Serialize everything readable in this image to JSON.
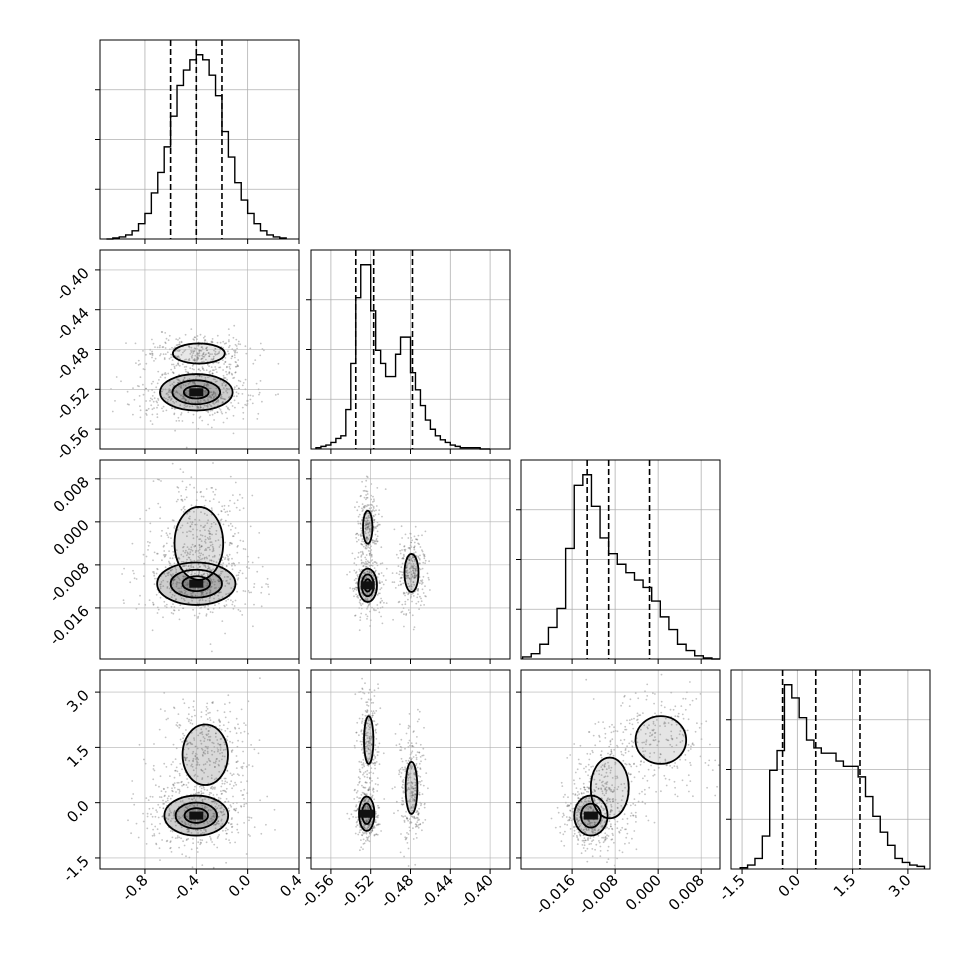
{
  "chart_data": {
    "type": "corner",
    "title": "",
    "grid": true,
    "parameters": [
      {
        "range": [
          -1.15,
          0.4
        ],
        "ticks": [
          "-0.8",
          "-0.4",
          "0.0",
          "0.4"
        ],
        "tick_values": [
          -0.8,
          -0.4,
          0.0,
          0.4
        ],
        "quantiles": [
          -0.6,
          -0.4,
          -0.2
        ],
        "histogram": {
          "bin_edges": [
            -1.1,
            -1.05,
            -1.0,
            -0.95,
            -0.9,
            -0.85,
            -0.8,
            -0.75,
            -0.7,
            -0.65,
            -0.6,
            -0.55,
            -0.5,
            -0.45,
            -0.4,
            -0.35,
            -0.3,
            -0.25,
            -0.2,
            -0.15,
            -0.1,
            -0.05,
            0.0,
            0.05,
            0.1,
            0.15,
            0.2,
            0.25,
            0.3
          ],
          "counts": [
            0,
            1,
            2,
            4,
            8,
            15,
            25,
            45,
            65,
            90,
            120,
            150,
            165,
            175,
            180,
            175,
            160,
            140,
            105,
            80,
            55,
            38,
            25,
            15,
            8,
            4,
            2,
            1
          ]
        }
      },
      {
        "range": [
          -0.58,
          -0.38
        ],
        "ticks": [
          "-0.56",
          "-0.52",
          "-0.48",
          "-0.44",
          "-0.40"
        ],
        "tick_values": [
          -0.56,
          -0.52,
          -0.48,
          -0.44,
          -0.4
        ],
        "quantiles": [
          -0.535,
          -0.517,
          -0.478
        ],
        "histogram": {
          "bin_edges": [
            -0.575,
            -0.57,
            -0.565,
            -0.56,
            -0.555,
            -0.55,
            -0.545,
            -0.54,
            -0.535,
            -0.53,
            -0.525,
            -0.52,
            -0.515,
            -0.51,
            -0.505,
            -0.5,
            -0.495,
            -0.49,
            -0.485,
            -0.48,
            -0.475,
            -0.47,
            -0.465,
            -0.46,
            -0.455,
            -0.45,
            -0.445,
            -0.44,
            -0.435,
            -0.43,
            -0.425,
            -0.42,
            -0.415,
            -0.41,
            -0.405,
            -0.4
          ],
          "counts": [
            1,
            2,
            3,
            5,
            8,
            10,
            30,
            65,
            115,
            140,
            140,
            105,
            75,
            65,
            55,
            55,
            72,
            85,
            85,
            58,
            45,
            33,
            22,
            15,
            10,
            7,
            5,
            3,
            2,
            1,
            1,
            1,
            1,
            0,
            0
          ]
        }
      },
      {
        "range": [
          -0.0255,
          0.0115
        ],
        "ticks": [
          "-0.016",
          "-0.008",
          "0.000",
          "0.008"
        ],
        "tick_values": [
          -0.016,
          -0.008,
          0.0,
          0.008
        ],
        "quantiles": [
          -0.0132,
          -0.0092,
          -0.0016
        ],
        "histogram": {
          "bin_edges": [
            -0.0252,
            -0.0236,
            -0.022,
            -0.0204,
            -0.0188,
            -0.0172,
            -0.0156,
            -0.014,
            -0.0124,
            -0.0108,
            -0.0092,
            -0.0076,
            -0.006,
            -0.0044,
            -0.0028,
            -0.0012,
            0.0004,
            0.002,
            0.0036,
            0.0052,
            0.0068,
            0.0084,
            0.01,
            0.0116
          ],
          "counts": [
            2,
            5,
            14,
            30,
            48,
            105,
            165,
            175,
            145,
            115,
            100,
            90,
            82,
            75,
            68,
            55,
            40,
            28,
            14,
            8,
            3,
            1,
            0
          ]
        }
      },
      {
        "range": [
          -1.8,
          3.6
        ],
        "ticks": [
          "-1.5",
          "0.0",
          "1.5",
          "3.0"
        ],
        "tick_values": [
          -1.5,
          0.0,
          1.5,
          3.0
        ],
        "quantiles": [
          -0.4,
          0.5,
          1.7
        ],
        "histogram": {
          "bin_edges": [
            -1.55,
            -1.35,
            -1.15,
            -0.95,
            -0.75,
            -0.55,
            -0.35,
            -0.15,
            0.05,
            0.25,
            0.45,
            0.65,
            0.85,
            1.05,
            1.25,
            1.45,
            1.65,
            1.85,
            2.05,
            2.25,
            2.45,
            2.65,
            2.85,
            3.05,
            3.25,
            3.45
          ],
          "counts": [
            1,
            3,
            8,
            25,
            75,
            90,
            140,
            130,
            115,
            98,
            92,
            88,
            88,
            82,
            78,
            78,
            70,
            55,
            40,
            28,
            18,
            8,
            5,
            3,
            2
          ]
        }
      }
    ],
    "pairs": [
      {
        "row": 1,
        "col": 0,
        "components": [
          {
            "mx": -0.4,
            "my": -0.523,
            "sx": 0.17,
            "sy": 0.011,
            "w": 0.65,
            "levels": [
              0.25,
              0.55,
              0.85
            ],
            "dark": true
          },
          {
            "mx": -0.38,
            "my": -0.484,
            "sx": 0.16,
            "sy": 0.008,
            "w": 0.35,
            "levels": [
              0.45
            ],
            "dark": false
          }
        ]
      },
      {
        "row": 2,
        "col": 0,
        "components": [
          {
            "mx": -0.4,
            "my": -0.0115,
            "sx": 0.17,
            "sy": 0.0022,
            "w": 0.5,
            "levels": [
              0.2,
              0.5,
              0.82
            ],
            "dark": true
          },
          {
            "mx": -0.38,
            "my": -0.004,
            "sx": 0.14,
            "sy": 0.005,
            "w": 0.5,
            "levels": [
              0.4
            ],
            "dark": false
          }
        ]
      },
      {
        "row": 2,
        "col": 1,
        "components": [
          {
            "mx": -0.523,
            "my": -0.0118,
            "sx": 0.006,
            "sy": 0.002,
            "w": 0.35,
            "levels": [
              0.3,
              0.6,
              0.85
            ],
            "dark": true
          },
          {
            "mx": -0.523,
            "my": -0.001,
            "sx": 0.004,
            "sy": 0.0026,
            "w": 0.3,
            "levels": [
              0.5
            ],
            "dark": false
          },
          {
            "mx": -0.479,
            "my": -0.0095,
            "sx": 0.006,
            "sy": 0.003,
            "w": 0.35,
            "levels": [
              0.5
            ],
            "dark": false
          }
        ]
      },
      {
        "row": 3,
        "col": 0,
        "components": [
          {
            "mx": -0.4,
            "my": -0.35,
            "sx": 0.16,
            "sy": 0.35,
            "w": 0.5,
            "levels": [
              0.3,
              0.6,
              0.85
            ],
            "dark": true
          },
          {
            "mx": -0.33,
            "my": 1.3,
            "sx": 0.14,
            "sy": 0.65,
            "w": 0.5,
            "levels": [
              0.45
            ],
            "dark": false
          }
        ]
      },
      {
        "row": 3,
        "col": 1,
        "components": [
          {
            "mx": -0.524,
            "my": -0.3,
            "sx": 0.005,
            "sy": 0.3,
            "w": 0.35,
            "levels": [
              0.3,
              0.65
            ],
            "dark": true
          },
          {
            "mx": -0.522,
            "my": 1.7,
            "sx": 0.004,
            "sy": 0.55,
            "w": 0.3,
            "levels": [
              0.5
            ],
            "dark": false
          },
          {
            "mx": -0.479,
            "my": 0.4,
            "sx": 0.005,
            "sy": 0.6,
            "w": 0.35,
            "levels": [
              0.5
            ],
            "dark": false
          }
        ]
      },
      {
        "row": 3,
        "col": 2,
        "components": [
          {
            "mx": -0.0125,
            "my": -0.35,
            "sx": 0.002,
            "sy": 0.35,
            "w": 0.4,
            "levels": [
              0.3,
              0.65
            ],
            "dark": true
          },
          {
            "mx": -0.009,
            "my": 0.4,
            "sx": 0.003,
            "sy": 0.7,
            "w": 0.3,
            "levels": [
              0.5
            ],
            "dark": false
          },
          {
            "mx": 0.0005,
            "my": 1.7,
            "sx": 0.004,
            "sy": 0.55,
            "w": 0.3,
            "levels": [
              0.5
            ],
            "dark": false
          }
        ]
      }
    ]
  },
  "colors": {
    "background": "#ffffff",
    "axes": "#000000",
    "grid": "#b0b0b0",
    "scatter": "#555555",
    "contour": "#000000"
  }
}
